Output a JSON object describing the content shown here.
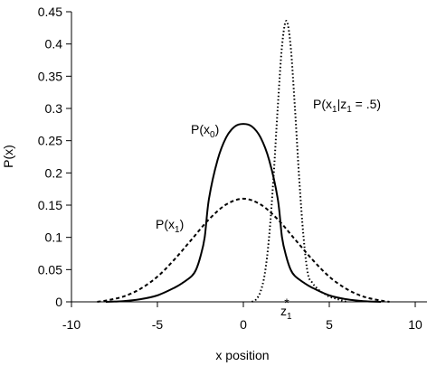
{
  "chart_data": {
    "type": "line",
    "xlabel": "x position",
    "ylabel": "P(x)",
    "xlim": [
      -10,
      10
    ],
    "ylim": [
      0,
      0.45
    ],
    "x_ticks": [
      -10,
      -5,
      0,
      5,
      10
    ],
    "y_ticks": [
      0,
      0.05,
      0.1,
      0.15,
      0.2,
      0.25,
      0.3,
      0.35,
      0.4,
      0.45
    ],
    "x_tick_labels": [
      "-10",
      "-5",
      "0",
      "5",
      "10"
    ],
    "y_tick_labels": [
      "0",
      "0.05",
      "0.1",
      "0.15",
      "0.2",
      "0.25",
      "0.3",
      "0.35",
      "0.4",
      "0.45"
    ],
    "grid": false,
    "legend": "none",
    "series": [
      {
        "name": "P(x0)",
        "label_main": "P(x",
        "label_sub": "0",
        "label_end": ")",
        "style": "solid",
        "x": [
          -8,
          -7,
          -6,
          -5,
          -4,
          -3.5,
          -3,
          -2.75,
          -2.5,
          -2.25,
          -2,
          -1.5,
          -1,
          -0.5,
          0,
          0.5,
          1,
          1.5,
          2,
          2.25,
          2.5,
          2.75,
          3,
          3.5,
          4,
          5,
          6,
          7,
          8
        ],
        "y": [
          0,
          0.001,
          0.004,
          0.01,
          0.022,
          0.03,
          0.04,
          0.05,
          0.07,
          0.1,
          0.16,
          0.22,
          0.255,
          0.272,
          0.276,
          0.272,
          0.255,
          0.22,
          0.16,
          0.1,
          0.07,
          0.05,
          0.04,
          0.03,
          0.022,
          0.01,
          0.004,
          0.001,
          0
        ]
      },
      {
        "name": "P(x1)",
        "label_main": "P(x",
        "label_sub": "1",
        "label_end": ")",
        "style": "dashed",
        "x": [
          -8.5,
          -8,
          -7,
          -6,
          -5,
          -4,
          -3,
          -2,
          -1,
          0,
          1,
          2,
          3,
          4,
          5,
          6,
          7,
          8,
          8.5
        ],
        "y": [
          0,
          0.002,
          0.008,
          0.02,
          0.039,
          0.066,
          0.097,
          0.128,
          0.151,
          0.16,
          0.151,
          0.128,
          0.097,
          0.066,
          0.039,
          0.02,
          0.008,
          0.002,
          0
        ]
      },
      {
        "name": "P(x1|z1 = .5)",
        "label_main": "P(x",
        "label_sub": "1",
        "label_mid": "|z",
        "label_sub2": "1",
        "label_end": " = .5)",
        "style": "dotted",
        "x": [
          0.5,
          0.75,
          1,
          1.25,
          1.5,
          1.75,
          2,
          2.25,
          2.5,
          2.75,
          3,
          3.25,
          3.5,
          3.75,
          4,
          4.25,
          4.5,
          4.75,
          5,
          5.25,
          5.5,
          5.75,
          6
        ],
        "y": [
          0,
          0.004,
          0.016,
          0.044,
          0.101,
          0.191,
          0.301,
          0.397,
          0.436,
          0.397,
          0.301,
          0.191,
          0.101,
          0.044,
          0.03,
          0.022,
          0.016,
          0.012,
          0.008,
          0.006,
          0.004,
          0.002,
          0
        ]
      }
    ],
    "annotations": [
      {
        "label_main": "z",
        "label_sub": "1",
        "marker": "*",
        "x": 2.5
      }
    ]
  }
}
